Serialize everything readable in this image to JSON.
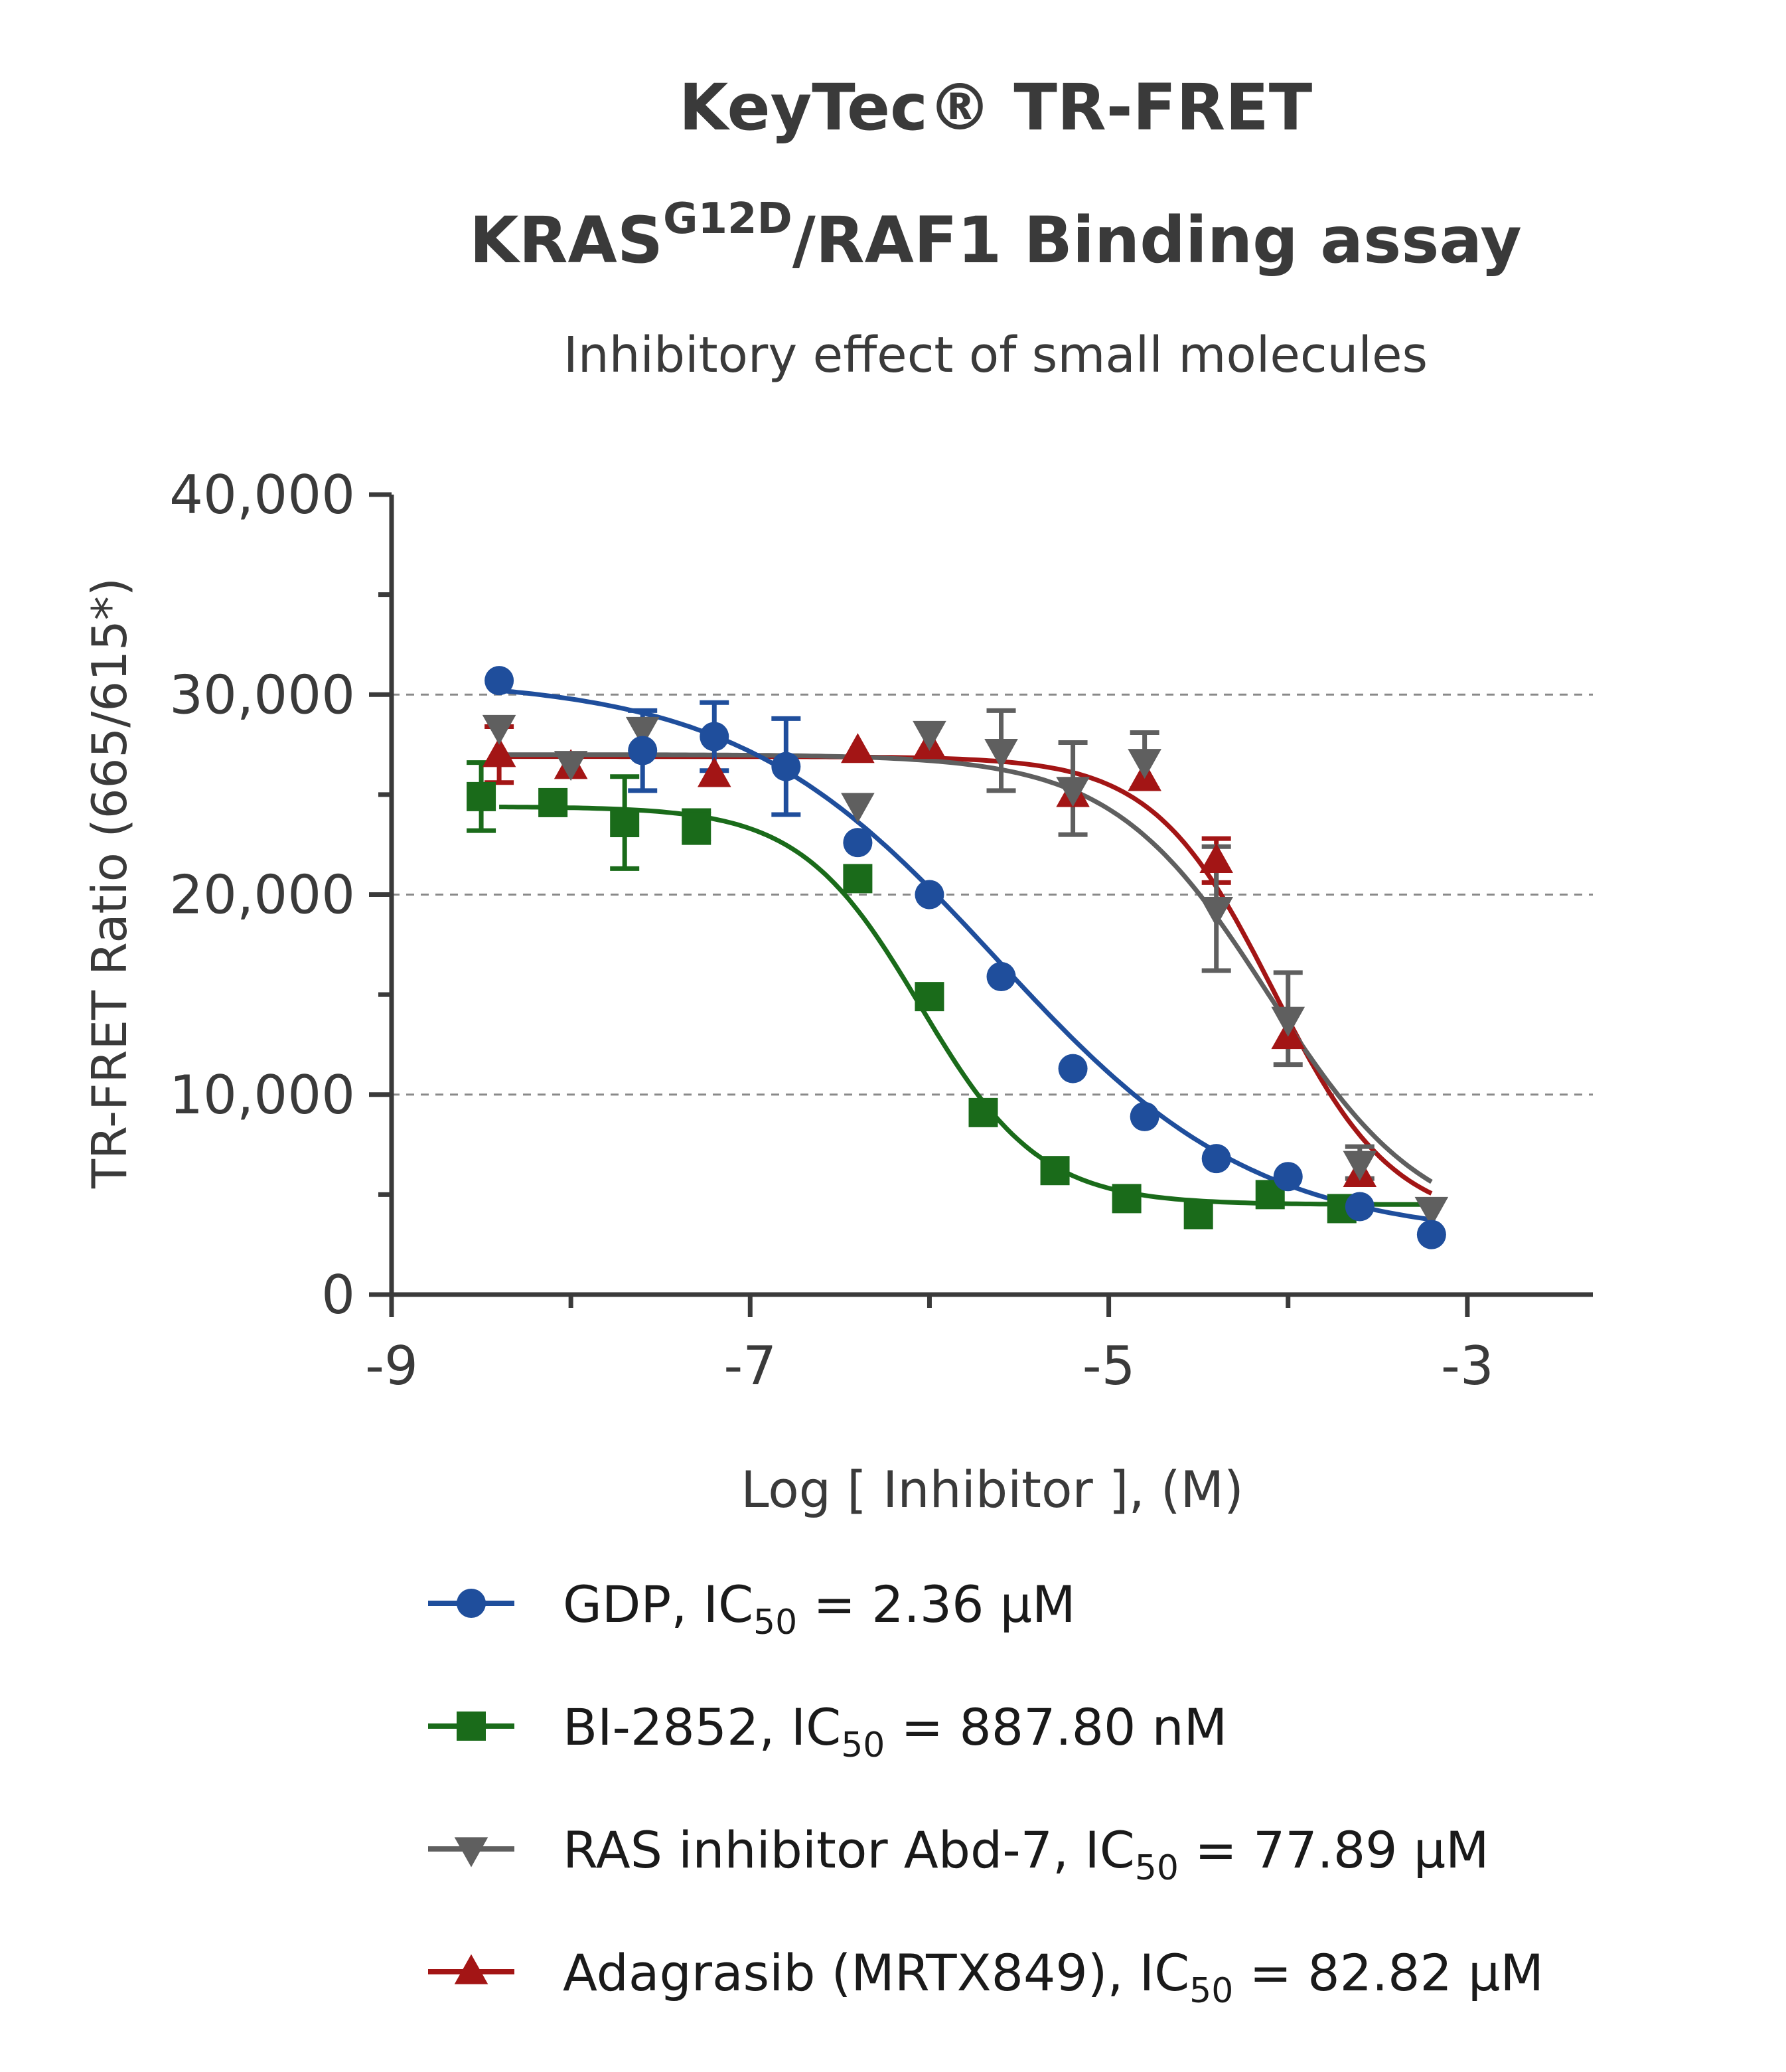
{
  "chart_data": {
    "type": "scatter",
    "title_line1": "KeyTec® TR-FRET",
    "title_line2_main": "KRAS",
    "title_line2_sup": "G12D",
    "title_line2_rest": "/RAF1 Binding assay",
    "subtitle": "Inhibitory effect of small molecules",
    "xlabel": "Log [ Inhibitor ], (M)",
    "ylabel": "TR-FRET Ratio (665/615*)",
    "xlim": [
      -9,
      -2.3
    ],
    "ylim": [
      0,
      40000
    ],
    "xticks": [
      -9,
      -7,
      -5,
      -3
    ],
    "xtick_labels": [
      "-9",
      "-7",
      "-5",
      "-3"
    ],
    "yticks": [
      0,
      10000,
      20000,
      30000,
      40000
    ],
    "ytick_labels": [
      "0",
      "10,000",
      "20,000",
      "30,000",
      "40,000"
    ],
    "grid": "dashed horizontal at 10,000, 20,000, 30,000",
    "legend_position": "bottom",
    "series": [
      {
        "name": "GDP",
        "ic50_prefix": "IC",
        "ic50_sub": "50",
        "ic50_value": " = 2.36 μM",
        "color": "#1f4e9c",
        "marker": "circle",
        "points": [
          {
            "x": -8.4,
            "y": 30700,
            "err": 0
          },
          {
            "x": -7.6,
            "y": 27200,
            "err": 2000
          },
          {
            "x": -7.2,
            "y": 27900,
            "err": 1700
          },
          {
            "x": -6.8,
            "y": 26400,
            "err": 2400
          },
          {
            "x": -6.4,
            "y": 22600,
            "err": 0
          },
          {
            "x": -6.0,
            "y": 20000,
            "err": 0
          },
          {
            "x": -5.6,
            "y": 15900,
            "err": 0
          },
          {
            "x": -5.2,
            "y": 11300,
            "err": 0
          },
          {
            "x": -4.8,
            "y": 8900,
            "err": 0
          },
          {
            "x": -4.4,
            "y": 6800,
            "err": 0
          },
          {
            "x": -4.0,
            "y": 5900,
            "err": 0
          },
          {
            "x": -3.6,
            "y": 4400,
            "err": 0
          },
          {
            "x": -3.2,
            "y": 3000,
            "err": 0
          }
        ],
        "fit": {
          "top": 30800,
          "bottom": 2800,
          "logIC50": -5.627,
          "hill": 0.6
        }
      },
      {
        "name": "BI-2852",
        "ic50_prefix": "IC",
        "ic50_sub": "50",
        "ic50_value": " = 887.80 nM",
        "color": "#1a6b1a",
        "marker": "square",
        "points": [
          {
            "x": -8.5,
            "y": 24900,
            "err": 1700
          },
          {
            "x": -8.1,
            "y": 24600,
            "err": 0
          },
          {
            "x": -7.7,
            "y": 23600,
            "err": 2300
          },
          {
            "x": -7.3,
            "y": 23400,
            "err": 800
          },
          {
            "x": -6.4,
            "y": 20800,
            "err": 0
          },
          {
            "x": -6.0,
            "y": 14900,
            "err": 0
          },
          {
            "x": -5.7,
            "y": 9100,
            "err": 0
          },
          {
            "x": -5.3,
            "y": 6200,
            "err": 0
          },
          {
            "x": -4.9,
            "y": 4800,
            "err": 0
          },
          {
            "x": -4.5,
            "y": 4000,
            "err": 0
          },
          {
            "x": -4.1,
            "y": 5000,
            "err": 0
          },
          {
            "x": -3.7,
            "y": 4300,
            "err": 0
          }
        ],
        "fit": {
          "top": 24400,
          "bottom": 4500,
          "logIC50": -6.052,
          "hill": 1.3
        }
      },
      {
        "name": "RAS inhibitor Abd-7",
        "ic50_prefix": "IC",
        "ic50_sub": "50",
        "ic50_value": " = 77.89 μM",
        "color": "#5f5f5f",
        "marker": "triangle-down",
        "points": [
          {
            "x": -8.4,
            "y": 28400,
            "err": 0
          },
          {
            "x": -8.0,
            "y": 26600,
            "err": 0
          },
          {
            "x": -7.6,
            "y": 28300,
            "err": 0
          },
          {
            "x": -6.4,
            "y": 24500,
            "err": 0
          },
          {
            "x": -6.0,
            "y": 28100,
            "err": 0
          },
          {
            "x": -5.6,
            "y": 27200,
            "err": 2000
          },
          {
            "x": -5.2,
            "y": 25300,
            "err": 2300
          },
          {
            "x": -4.8,
            "y": 26700,
            "err": 1400
          },
          {
            "x": -4.4,
            "y": 19300,
            "err": 3100
          },
          {
            "x": -4.0,
            "y": 13800,
            "err": 2300
          },
          {
            "x": -3.6,
            "y": 6600,
            "err": 800
          },
          {
            "x": -3.2,
            "y": 4300,
            "err": 0
          }
        ],
        "fit": {
          "top": 27000,
          "bottom": 3000,
          "logIC50": -4.108,
          "hill": 1.0
        }
      },
      {
        "name": "Adagrasib (MRTX849)",
        "ic50_prefix": "IC",
        "ic50_sub": "50",
        "ic50_value": " = 82.82 μM",
        "color": "#a31515",
        "marker": "triangle-up",
        "points": [
          {
            "x": -8.4,
            "y": 27000,
            "err": 1400
          },
          {
            "x": -8.0,
            "y": 26400,
            "err": 0
          },
          {
            "x": -7.2,
            "y": 26000,
            "err": 0
          },
          {
            "x": -6.4,
            "y": 27200,
            "err": 0
          },
          {
            "x": -6.0,
            "y": 27400,
            "err": 0
          },
          {
            "x": -5.2,
            "y": 25000,
            "err": 0
          },
          {
            "x": -4.8,
            "y": 25800,
            "err": 0
          },
          {
            "x": -4.4,
            "y": 21700,
            "err": 1100
          },
          {
            "x": -4.0,
            "y": 12900,
            "err": 0
          },
          {
            "x": -3.6,
            "y": 6000,
            "err": 0
          }
        ],
        "fit": {
          "top": 26900,
          "bottom": 3500,
          "logIC50": -4.082,
          "hill": 1.3
        }
      }
    ]
  }
}
